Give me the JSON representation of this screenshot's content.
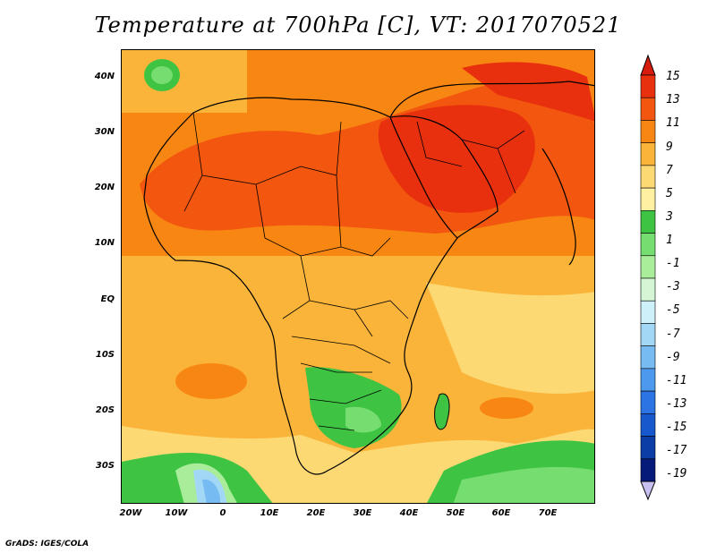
{
  "title": "Temperature at 700hPa [C], VT: 2017070521",
  "credit": "GrADS: IGES/COLA",
  "axes": {
    "x_ticks": [
      "20W",
      "10W",
      "0",
      "10E",
      "20E",
      "30E",
      "40E",
      "50E",
      "60E",
      "70E"
    ],
    "y_ticks": [
      "40N",
      "30N",
      "20N",
      "10N",
      "EQ",
      "10S",
      "20S",
      "30S"
    ]
  },
  "colorbar": {
    "labels": [
      "15",
      "13",
      "11",
      "9",
      "7",
      "5",
      "3",
      "1",
      "-1",
      "-3",
      "-5",
      "-7",
      "-9",
      "-11",
      "-13",
      "-15",
      "-17",
      "-19"
    ],
    "colors": [
      "#e8300f",
      "#f2560f",
      "#f88612",
      "#fab43a",
      "#fdd974",
      "#fff0a2",
      "#3ec343",
      "#76dd70",
      "#a9ed9b",
      "#d4f6d4",
      "#cdf0f9",
      "#a2d8f5",
      "#77bbf3",
      "#4c99ee",
      "#2c74e4",
      "#1758cc",
      "#0c3da6",
      "#061a7a"
    ]
  }
}
